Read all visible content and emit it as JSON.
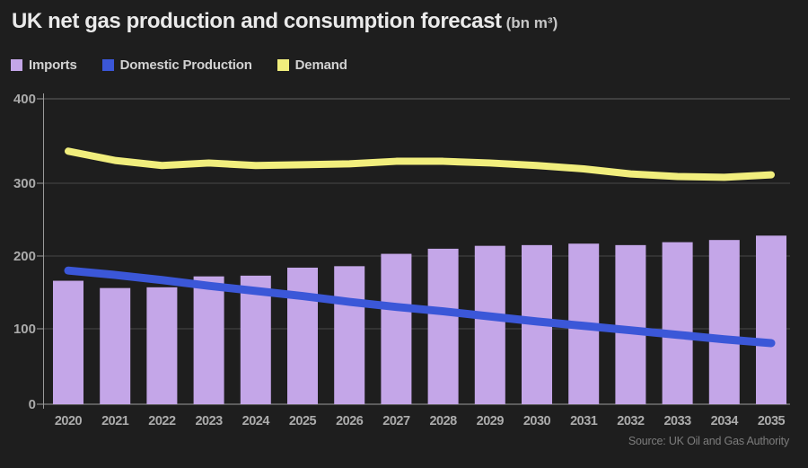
{
  "title": "UK net gas production and consumption forecast",
  "title_unit": "(bn m³)",
  "source": "Source: UK Oil and Gas Authority",
  "colors": {
    "background": "#1e1e1e",
    "imports_bar": "#c4a6e8",
    "domestic_production_line": "#3b57d8",
    "demand_line": "#f1ee7d",
    "gridline": "#484848",
    "axis": "#9a9a9a",
    "tick_label": "#ababab",
    "title_text": "#eaeaea",
    "source_text": "#7d7d7d"
  },
  "chart_data": {
    "type": "bar",
    "subtype": "bar-with-line-overlays",
    "title": "UK net gas production and consumption forecast",
    "unit": "bn m³",
    "xlabel": "",
    "ylabel": "",
    "ylim": [
      0,
      400
    ],
    "yticks": [
      0,
      100,
      200,
      300,
      400
    ],
    "grid": "horizontal",
    "legend_position": "top-left",
    "categories": [
      "2020",
      "2021",
      "2022",
      "2023",
      "2024",
      "2025",
      "2026",
      "2027",
      "2028",
      "2029",
      "2030",
      "2031",
      "2032",
      "2033",
      "2034",
      "2035"
    ],
    "series": [
      {
        "name": "Imports",
        "type": "bar",
        "color": "#c4a6e8",
        "values": [
          166,
          156,
          157,
          172,
          173,
          184,
          186,
          203,
          210,
          214,
          215,
          217,
          215,
          219,
          222,
          228
        ]
      },
      {
        "name": "Domestic Production",
        "type": "line",
        "color": "#3b57d8",
        "values": [
          180,
          174,
          167,
          159,
          152,
          145,
          137,
          130,
          124,
          117,
          110,
          104,
          98,
          92,
          86,
          81
        ]
      },
      {
        "name": "Demand",
        "type": "line",
        "color": "#f1ee7d",
        "values": [
          338,
          327,
          321,
          324,
          321,
          322,
          323,
          326,
          326,
          324,
          321,
          317,
          311,
          308,
          307,
          310
        ]
      }
    ]
  }
}
